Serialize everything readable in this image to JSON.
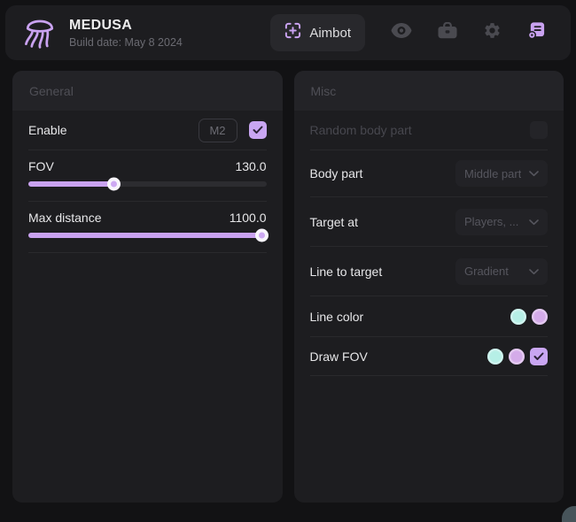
{
  "header": {
    "title": "MEDUSA",
    "subtitle": "Build date: May 8 2024",
    "active_tab": "Aimbot",
    "nav_icons": [
      "crosshair-icon",
      "eye-icon",
      "briefcase-icon",
      "gear-icon",
      "script-badge-icon"
    ],
    "logo_icon": "jellyfish-icon"
  },
  "general": {
    "title": "General",
    "enable": {
      "label": "Enable",
      "keybind": "M2",
      "checked": true
    },
    "fov": {
      "label": "FOV",
      "value": "130.0",
      "fill_percent": 36
    },
    "max_distance": {
      "label": "Max distance",
      "value": "1100.0",
      "fill_percent": 98.5
    }
  },
  "misc": {
    "title": "Misc",
    "random_body_part": {
      "label": "Random body part",
      "checked": false
    },
    "body_part": {
      "label": "Body part",
      "selected": "Middle part"
    },
    "target_at": {
      "label": "Target at",
      "selected": "Players, ..."
    },
    "line_to_target": {
      "label": "Line to target",
      "selected": "Gradient"
    },
    "line_color": {
      "label": "Line color",
      "swatches": [
        "#b6efe6",
        "#d4abe9"
      ]
    },
    "draw_fov": {
      "label": "Draw FOV",
      "swatches": [
        "#b6efe6",
        "#d4abe9"
      ],
      "checked": true
    }
  },
  "colors": {
    "accent": "#c9a2f0",
    "panel_bg": "#1d1d20",
    "cyan_swatch": "#b6efe6",
    "purple_swatch": "#d4abe9"
  }
}
